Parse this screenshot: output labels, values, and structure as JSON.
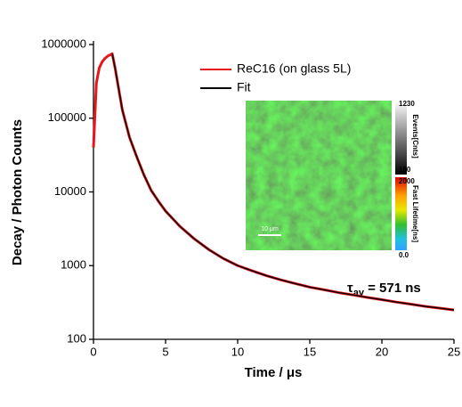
{
  "chart_data": {
    "type": "line",
    "x_label": "Time / μs",
    "y_label": "Decay / Photon Counts",
    "x": [
      0,
      0.2,
      0.4,
      0.6,
      0.8,
      1.0,
      1.2,
      1.3,
      1.5,
      2,
      2.5,
      3,
      3.5,
      4,
      4.5,
      5,
      6,
      7,
      8,
      9,
      10,
      11,
      12,
      13,
      14,
      15,
      16,
      17,
      18,
      19,
      20,
      21,
      22,
      23,
      24,
      25
    ],
    "series": [
      {
        "name": "ReC16 (on glass 5L)",
        "color": "#e8161b",
        "values": [
          40000,
          300000,
          480000,
          580000,
          650000,
          700000,
          730000,
          750000,
          480000,
          130000,
          55000,
          30000,
          17000,
          10500,
          7500,
          5500,
          3400,
          2300,
          1650,
          1250,
          1000,
          850,
          730,
          640,
          570,
          510,
          470,
          430,
          400,
          370,
          345,
          320,
          300,
          280,
          265,
          250
        ]
      },
      {
        "name": "Fit",
        "color": "#000000",
        "values": [
          null,
          null,
          null,
          null,
          null,
          null,
          null,
          750000,
          480000,
          130000,
          55000,
          30000,
          17000,
          10500,
          7500,
          5500,
          3400,
          2300,
          1650,
          1250,
          1000,
          850,
          730,
          640,
          570,
          510,
          470,
          430,
          400,
          370,
          345,
          320,
          300,
          280,
          265,
          250
        ]
      }
    ],
    "xlim": [
      0,
      25
    ],
    "xticks": [
      0,
      5,
      10,
      15,
      20,
      25
    ],
    "ylim": [
      100,
      1000000
    ],
    "yticks": [
      100,
      1000,
      10000,
      100000,
      1000000
    ],
    "y_scale": "log",
    "legend": "top",
    "annotation": {
      "symbol": "τ",
      "subscript": "av",
      "text": " = 571 ns"
    },
    "inset": {
      "scale_bar": "10 μm",
      "intensity_bar": {
        "max": "1230",
        "label": "Events[Cnts]",
        "min": "150"
      },
      "lifetime_bar": {
        "max": "2000",
        "label": "Fast Lifetime[ns]",
        "min": "0.0"
      }
    }
  }
}
